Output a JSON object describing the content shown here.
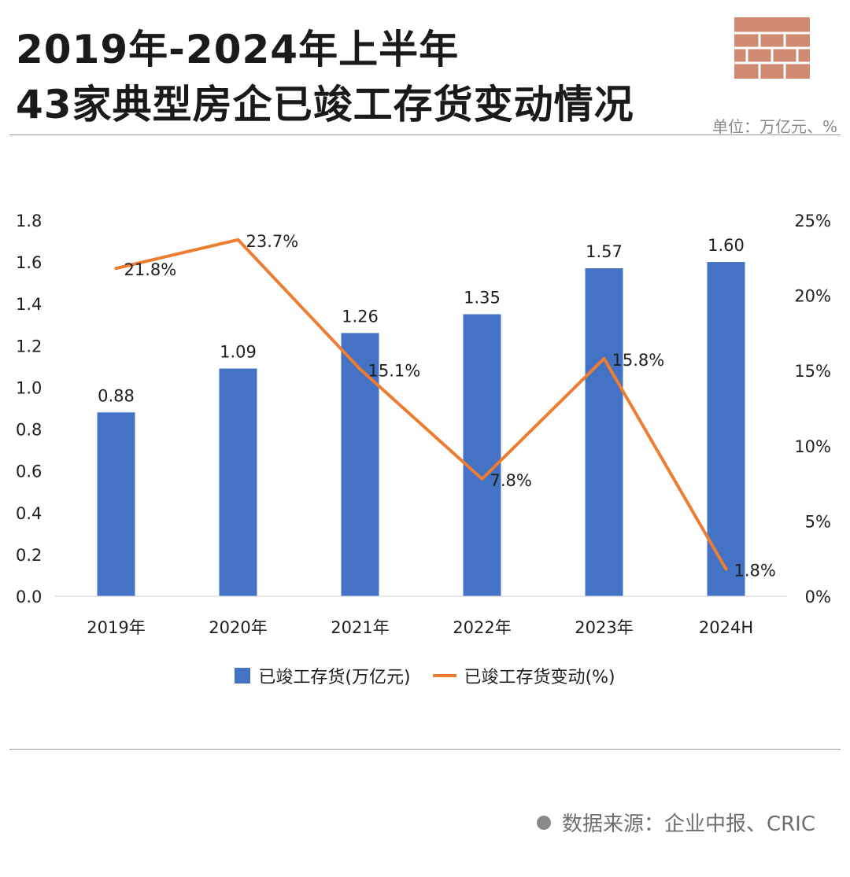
{
  "header": {
    "title_line1": "2019年-2024年上半年",
    "title_line2": "43家典型房企已竣工存货变动情况",
    "unit": "单位：万亿元、%"
  },
  "footer": {
    "source": "数据来源：企业中报、CRIC"
  },
  "chart_data": {
    "type": "bar",
    "categories": [
      "2019年",
      "2020年",
      "2021年",
      "2022年",
      "2023年",
      "2024H"
    ],
    "series": [
      {
        "name": "已竣工存货(万亿元)",
        "type": "bar",
        "axis": "left",
        "color": "#4472c4",
        "values": [
          0.88,
          1.09,
          1.26,
          1.35,
          1.57,
          1.6
        ],
        "labels": [
          "0.88",
          "1.09",
          "1.26",
          "1.35",
          "1.57",
          "1.60"
        ]
      },
      {
        "name": "已竣工存货变动(%)",
        "type": "line",
        "axis": "right",
        "color": "#ed7d31",
        "values": [
          21.8,
          23.7,
          15.1,
          7.8,
          15.8,
          1.8
        ],
        "labels": [
          "21.8%",
          "23.7%",
          "15.1%",
          "7.8%",
          "15.8%",
          "1.8%"
        ]
      }
    ],
    "y_left": {
      "min": 0,
      "max": 1.8,
      "ticks": [
        "0.0",
        "0.2",
        "0.4",
        "0.6",
        "0.8",
        "1.0",
        "1.2",
        "1.4",
        "1.6",
        "1.8"
      ]
    },
    "y_right": {
      "min": 0,
      "max": 25,
      "ticks": [
        "0%",
        "5%",
        "10%",
        "15%",
        "20%",
        "25%"
      ]
    },
    "grid": false,
    "legend_position": "bottom"
  }
}
